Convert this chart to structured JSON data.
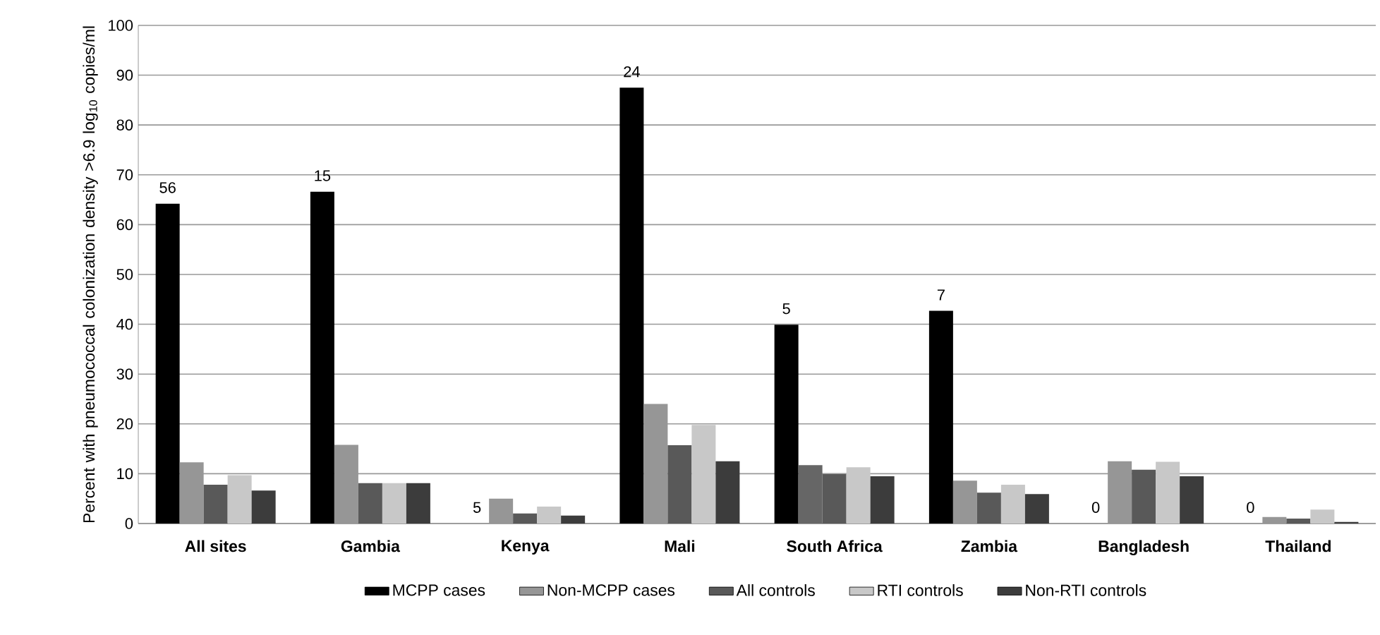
{
  "chart_data": {
    "type": "bar",
    "ylabel": "Percent with pneumococcal colonization density >6.9 log$_{10}$ copies/ml",
    "categories": [
      "All sites",
      "Gambia",
      "Kenya",
      "Mali",
      "South Africa",
      "Zambia",
      "Bangladesh",
      "Thailand"
    ],
    "series": [
      {
        "name": "MCPP cases",
        "color": "#000000",
        "values": [
          64.2,
          66.6,
          0,
          87.5,
          39.9,
          42.7,
          0,
          0
        ]
      },
      {
        "name": "Non-MCPP cases",
        "color": "#969696",
        "colors": [
          "#969696",
          "#969696",
          "#969696",
          "#969696",
          "#666666",
          "#969696",
          "#969696",
          "#969696"
        ],
        "values": [
          12.3,
          15.8,
          5.0,
          24.0,
          11.7,
          8.6,
          12.5,
          1.3
        ]
      },
      {
        "name": "All controls",
        "color": "#595959",
        "values": [
          7.8,
          8.1,
          2.0,
          15.7,
          9.9,
          6.2,
          10.8,
          1.0
        ]
      },
      {
        "name": "RTI controls",
        "color": "#c8c8c8",
        "values": [
          9.7,
          8.1,
          3.4,
          19.8,
          11.3,
          7.8,
          12.4,
          2.8
        ]
      },
      {
        "name": "Non-RTI controls",
        "color": "#3c3c3c",
        "values": [
          6.6,
          8.1,
          1.6,
          12.5,
          9.5,
          5.9,
          9.5,
          0.3
        ]
      }
    ],
    "annotations": [
      "56",
      "15",
      "5",
      "24",
      "5",
      "7",
      "0",
      "0"
    ],
    "ylim": [
      0,
      100
    ],
    "yticks": [
      0,
      10,
      20,
      30,
      40,
      50,
      60,
      70,
      80,
      90,
      100
    ],
    "grid": "y",
    "legend": "bottom"
  }
}
